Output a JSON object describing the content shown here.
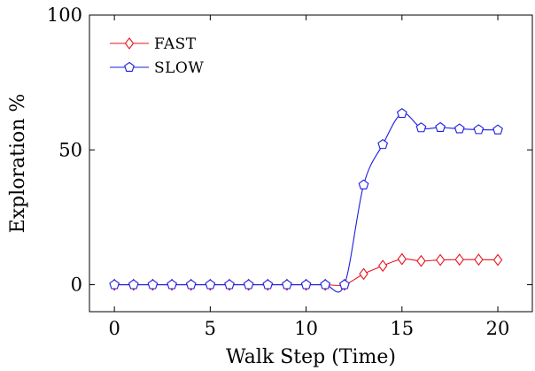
{
  "chart_data": {
    "type": "line",
    "xlabel": "Walk Step (Time)",
    "ylabel": "Exploration %",
    "xlim": [
      -1.3,
      21.8
    ],
    "ylim": [
      -10,
      100
    ],
    "x_ticks": [
      "0",
      "5",
      "10",
      "15",
      "20"
    ],
    "x_tick_values": [
      0,
      5,
      10,
      15,
      20
    ],
    "y_ticks": [
      "0",
      "50",
      "100"
    ],
    "y_tick_values": [
      0,
      50,
      100
    ],
    "grid": false,
    "legend_position": "top-left",
    "series": [
      {
        "name": "FAST",
        "color": "#e8141e",
        "marker": "diamond",
        "x": [
          0,
          1,
          2,
          3,
          4,
          5,
          6,
          7,
          8,
          9,
          10,
          11,
          12,
          13,
          14,
          15,
          16,
          17,
          18,
          19,
          20
        ],
        "y": [
          0,
          0,
          0,
          0,
          0,
          0,
          0,
          0,
          0,
          0,
          0,
          0,
          0,
          4,
          7,
          9.5,
          8.8,
          9.2,
          9.3,
          9.3,
          9.2
        ]
      },
      {
        "name": "SLOW",
        "color": "#1c1ce0",
        "marker": "pentagon",
        "x": [
          0,
          1,
          2,
          3,
          4,
          5,
          6,
          7,
          8,
          9,
          10,
          11,
          12,
          13,
          14,
          15,
          16,
          17,
          18,
          19,
          20
        ],
        "y": [
          0,
          0,
          0,
          0,
          0,
          0,
          0,
          0,
          0,
          0,
          0,
          0,
          0,
          37,
          52,
          63.5,
          58.2,
          58.3,
          57.8,
          57.5,
          57.4
        ]
      }
    ]
  }
}
